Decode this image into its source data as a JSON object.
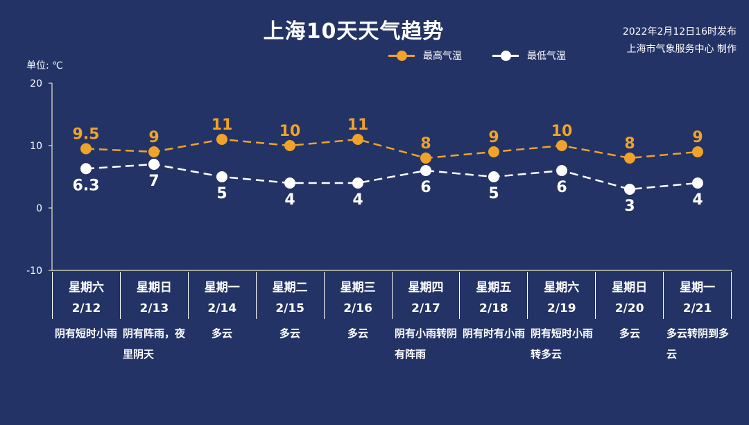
{
  "header": {
    "title": "上海10天天气趋势",
    "issued_line": "2022年2月12日16时发布",
    "producer_line": "上海市气象服务中心 制作",
    "unit_label": "单位: ℃"
  },
  "legend": [
    {
      "label": "最高气温",
      "color": "#F0A329"
    },
    {
      "label": "最低气温",
      "color": "#FFFFFF"
    }
  ],
  "colors": {
    "background": "#233366",
    "high": "#F0A329",
    "low": "#FFFFFF",
    "axis": "#E8E8C8"
  },
  "days": [
    {
      "weekday": "星期六",
      "date": "2/12",
      "condition": "阴有短时小雨"
    },
    {
      "weekday": "星期日",
      "date": "2/13",
      "condition": "阴有阵雨，夜里阴天"
    },
    {
      "weekday": "星期一",
      "date": "2/14",
      "condition": "多云"
    },
    {
      "weekday": "星期二",
      "date": "2/15",
      "condition": "多云"
    },
    {
      "weekday": "星期三",
      "date": "2/16",
      "condition": "多云"
    },
    {
      "weekday": "星期四",
      "date": "2/17",
      "condition": "阴有小雨转阴有阵雨"
    },
    {
      "weekday": "星期五",
      "date": "2/18",
      "condition": "阴有时有小雨"
    },
    {
      "weekday": "星期六",
      "date": "2/19",
      "condition": "阴有短时小雨转多云"
    },
    {
      "weekday": "星期日",
      "date": "2/20",
      "condition": "多云"
    },
    {
      "weekday": "星期一",
      "date": "2/21",
      "condition": "多云转阴到多云"
    }
  ],
  "chart_data": {
    "type": "line",
    "title": "上海10天天气趋势",
    "ylabel": "单位: ℃",
    "ylim": [
      -10,
      20
    ],
    "yticks": [
      -10,
      0,
      10,
      20
    ],
    "categories": [
      "2/12",
      "2/13",
      "2/14",
      "2/15",
      "2/16",
      "2/17",
      "2/18",
      "2/19",
      "2/20",
      "2/21"
    ],
    "series": [
      {
        "name": "最高气温",
        "values": [
          9.5,
          9,
          11,
          10,
          11,
          8,
          9,
          10,
          8,
          9
        ],
        "color": "#F0A329",
        "labels": [
          "9.5",
          "9",
          "11",
          "10",
          "11",
          "8",
          "9",
          "10",
          "8",
          "9"
        ]
      },
      {
        "name": "最低气温",
        "values": [
          6.3,
          7,
          5,
          4,
          4,
          6,
          5,
          6,
          3,
          4
        ],
        "color": "#FFFFFF",
        "labels": [
          "6.3",
          "7",
          "5",
          "4",
          "4",
          "6",
          "5",
          "6",
          "3",
          "4"
        ]
      }
    ],
    "legend_position": "top-center",
    "grid": false
  }
}
